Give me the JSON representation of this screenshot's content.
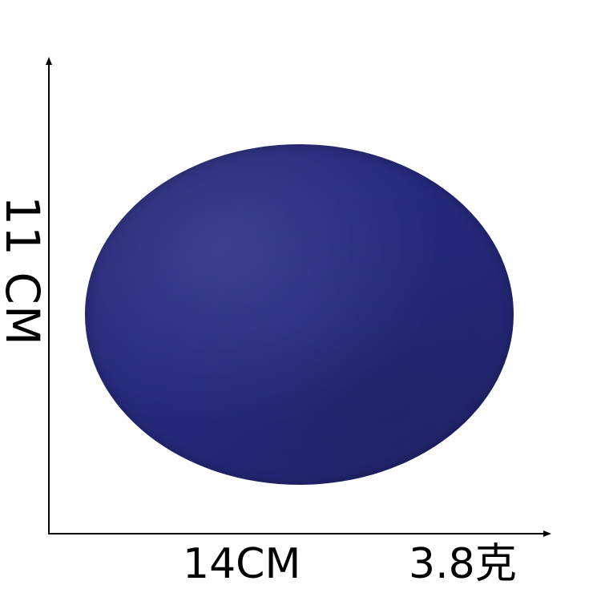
{
  "product": {
    "color": "#252a7c"
  },
  "dimensions": {
    "height_label": "11 CM",
    "width_label": "14CM",
    "weight_label": "3.8克"
  },
  "axes": {
    "color": "#000000"
  }
}
